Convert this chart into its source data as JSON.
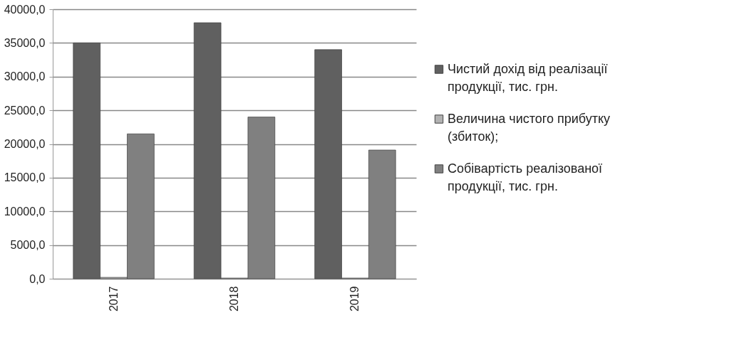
{
  "chart_data": {
    "type": "bar",
    "categories": [
      "2017",
      "2018",
      "2019"
    ],
    "series": [
      {
        "name": "Чистий дохід від реалізації продукції, тис. грн.",
        "color": "#606060",
        "values": [
          35000,
          38000,
          34000
        ]
      },
      {
        "name": "Величина чистого прибутку (збиток);",
        "color": "#b2b2b2",
        "values": [
          200,
          100,
          100
        ]
      },
      {
        "name": "Собівартість реалізованої продукції, тис. грн.",
        "color": "#808080",
        "values": [
          21500,
          24000,
          19100
        ]
      }
    ],
    "ylim": [
      0,
      40000
    ],
    "yticks": [
      {
        "value": 0,
        "label": "0,0"
      },
      {
        "value": 5000,
        "label": "5000,0"
      },
      {
        "value": 10000,
        "label": "10000,0"
      },
      {
        "value": 15000,
        "label": "15000,0"
      },
      {
        "value": 20000,
        "label": "20000,0"
      },
      {
        "value": 25000,
        "label": "25000,0"
      },
      {
        "value": 30000,
        "label": "30000,0"
      },
      {
        "value": 35000,
        "label": "35000,0"
      },
      {
        "value": 40000,
        "label": "40000,0"
      }
    ],
    "grid": "y",
    "legend": "right"
  }
}
